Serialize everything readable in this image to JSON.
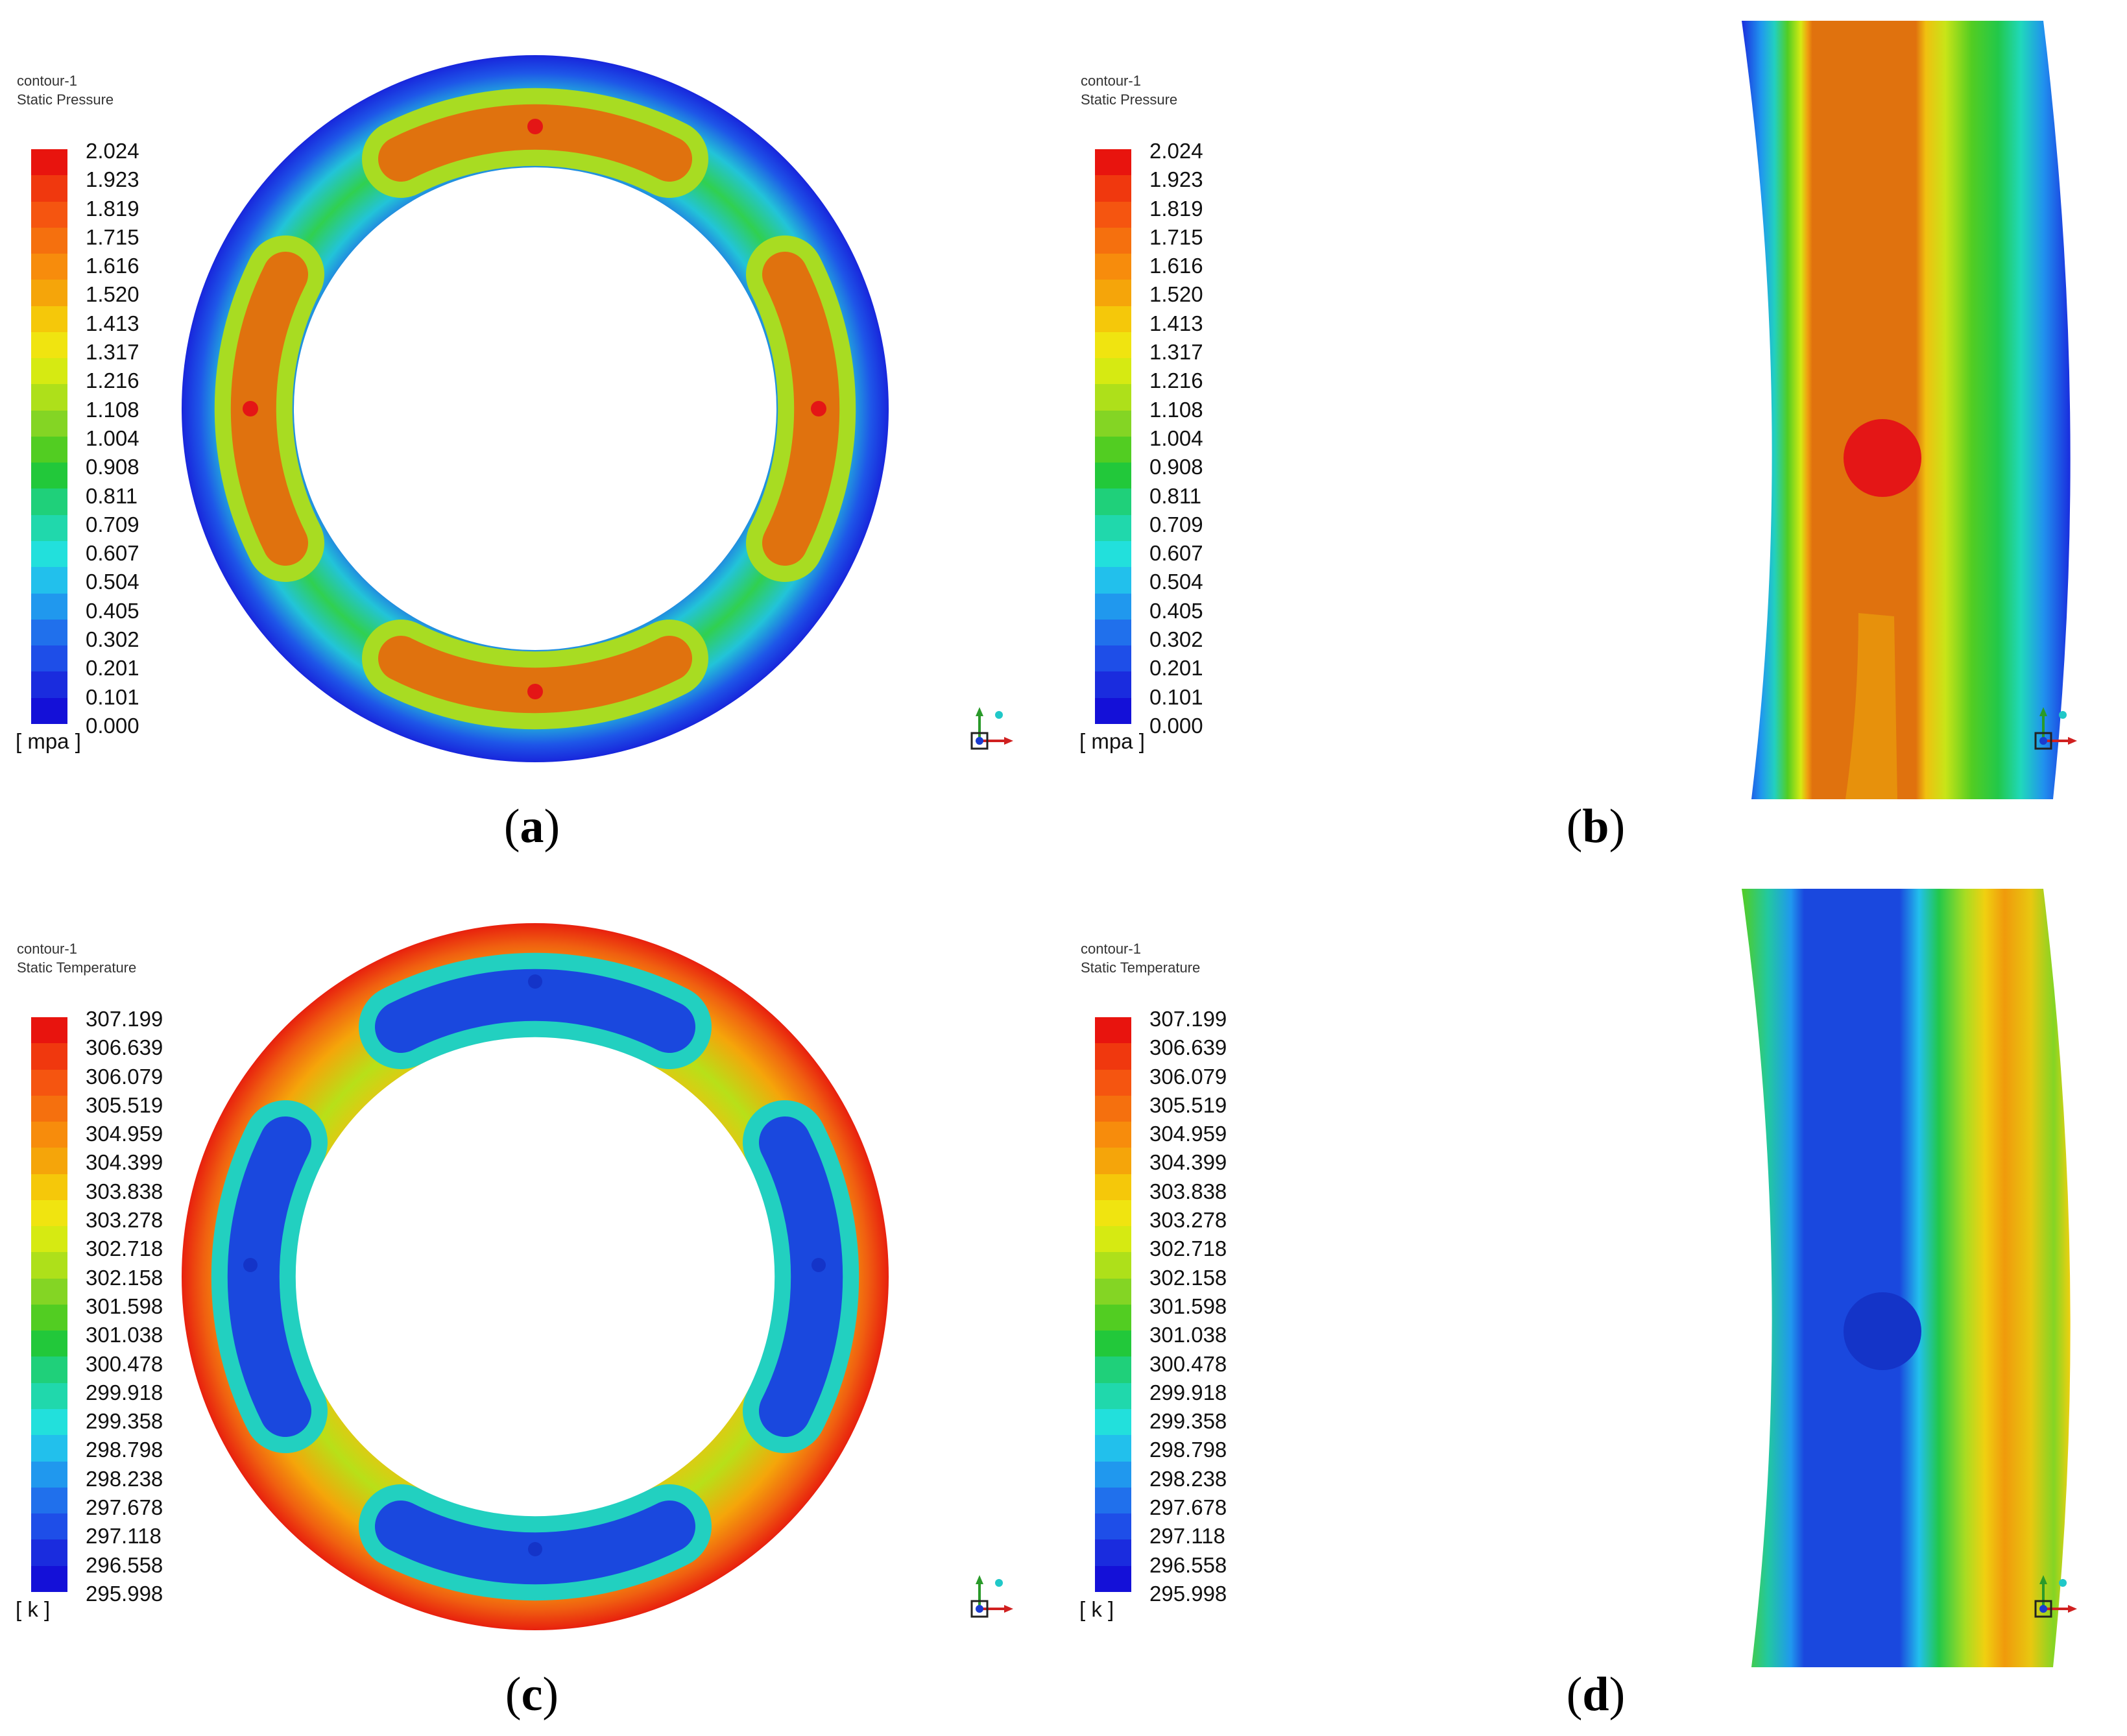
{
  "colors": {
    "ramp": [
      "#e8140e",
      "#f0380e",
      "#f55510",
      "#f5700e",
      "#f78c0c",
      "#f5a50a",
      "#f5c80a",
      "#f0e410",
      "#d6ea12",
      "#aee01a",
      "#84d524",
      "#52cd22",
      "#22c83a",
      "#1fd07a",
      "#20d8ac",
      "#22e0dc",
      "#22c0ec",
      "#2098ee",
      "#2070ec",
      "#1e4ee8",
      "#1a2cde",
      "#1410d8"
    ],
    "pressure_pad": "#e0720e",
    "pressure_pad_low": "#e8960c",
    "pressure_hole": "#e41616",
    "temperature_pad": "#1a48de",
    "temperature_hole": "#1434c8"
  },
  "panels": [
    {
      "id": "a",
      "label": "a",
      "contour_name": "contour-1",
      "variable": "Static Pressure",
      "unit": "[ mpa ]",
      "legend": [
        "2.024",
        "1.923",
        "1.819",
        "1.715",
        "1.616",
        "1.520",
        "1.413",
        "1.317",
        "1.216",
        "1.108",
        "1.004",
        "0.908",
        "0.811",
        "0.709",
        "0.607",
        "0.504",
        "0.405",
        "0.302",
        "0.201",
        "0.101",
        "0.000"
      ]
    },
    {
      "id": "b",
      "label": "b",
      "contour_name": "contour-1",
      "variable": "Static Pressure",
      "unit": "[ mpa ]",
      "legend": [
        "2.024",
        "1.923",
        "1.819",
        "1.715",
        "1.616",
        "1.520",
        "1.413",
        "1.317",
        "1.216",
        "1.108",
        "1.004",
        "0.908",
        "0.811",
        "0.709",
        "0.607",
        "0.504",
        "0.405",
        "0.302",
        "0.201",
        "0.101",
        "0.000"
      ]
    },
    {
      "id": "c",
      "label": "c",
      "contour_name": "contour-1",
      "variable": "Static Temperature",
      "unit": "[ k ]",
      "legend": [
        "307.199",
        "306.639",
        "306.079",
        "305.519",
        "304.959",
        "304.399",
        "303.838",
        "303.278",
        "302.718",
        "302.158",
        "301.598",
        "301.038",
        "300.478",
        "299.918",
        "299.358",
        "298.798",
        "298.238",
        "297.678",
        "297.118",
        "296.558",
        "295.998"
      ]
    },
    {
      "id": "d",
      "label": "d",
      "contour_name": "contour-1",
      "variable": "Static Temperature",
      "unit": "[ k ]",
      "legend": [
        "307.199",
        "306.639",
        "306.079",
        "305.519",
        "304.959",
        "304.399",
        "303.838",
        "303.278",
        "302.718",
        "302.158",
        "301.598",
        "301.038",
        "300.478",
        "299.918",
        "299.358",
        "298.798",
        "298.238",
        "297.678",
        "297.118",
        "296.558",
        "295.998"
      ]
    }
  ]
}
